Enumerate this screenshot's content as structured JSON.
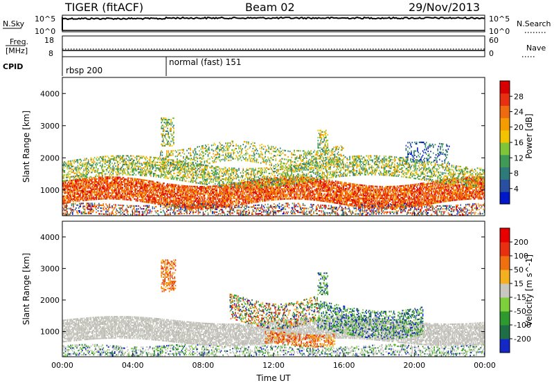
{
  "header": {
    "station": "TIGER (fitACF)",
    "beam": "Beam 02",
    "date": "29/Nov/2013"
  },
  "panel_nsky": {
    "left_label": "N.Sky",
    "right_label": "N.Search",
    "top_tick": "10^5",
    "bottom_tick": "10^0"
  },
  "panel_freq": {
    "left_label": "Freq.",
    "left_unit": "[MHz]",
    "right_label": "Nave",
    "left_ticks": [
      "18",
      "8"
    ],
    "right_ticks": [
      "60",
      "0"
    ]
  },
  "panel_cpid": {
    "label": "CPID",
    "modes": [
      {
        "name": "rbsp 200",
        "start_hour": 0
      },
      {
        "name": "normal (fast) 151",
        "start_hour": 6
      }
    ]
  },
  "chart_data": [
    {
      "type": "heatmap",
      "title": "",
      "xlabel": "",
      "ylabel": "Slant Range [km]",
      "xlim": [
        0,
        24
      ],
      "ylim": [
        200,
        4500
      ],
      "x_ticks": [
        "00:00",
        "04:00",
        "08:00",
        "12:00",
        "16:00",
        "20:00",
        "00:00"
      ],
      "y_ticks": [
        1000,
        2000,
        3000,
        4000
      ],
      "colorbar": {
        "label": "Power [dB]",
        "ticks": [
          "4",
          "8",
          "12",
          "16",
          "20",
          "24",
          "28"
        ],
        "colors": [
          "#0018c8",
          "#2a4fa0",
          "#2e7a78",
          "#3f9a55",
          "#7ec53a",
          "#f2c400",
          "#f59c00",
          "#f06a10",
          "#e83010",
          "#d80000"
        ]
      }
    },
    {
      "type": "heatmap",
      "title": "",
      "xlabel": "Time UT",
      "ylabel": "Slant Range [km]",
      "xlim": [
        0,
        24
      ],
      "ylim": [
        200,
        4500
      ],
      "x_ticks": [
        "00:00",
        "04:00",
        "08:00",
        "12:00",
        "16:00",
        "20:00",
        "00:00"
      ],
      "y_ticks": [
        1000,
        2000,
        3000,
        4000
      ],
      "colorbar": {
        "label": "Velocity [m s^-1]",
        "ticks": [
          "200",
          "100",
          "50",
          "15",
          "-15",
          "-50",
          "-100",
          "-200"
        ],
        "colors": [
          "#1428c8",
          "#1e6e46",
          "#2e9a2e",
          "#7ed03a",
          "#c8c8c0",
          "#f5b020",
          "#f07010",
          "#e83010",
          "#e80000"
        ]
      }
    }
  ]
}
